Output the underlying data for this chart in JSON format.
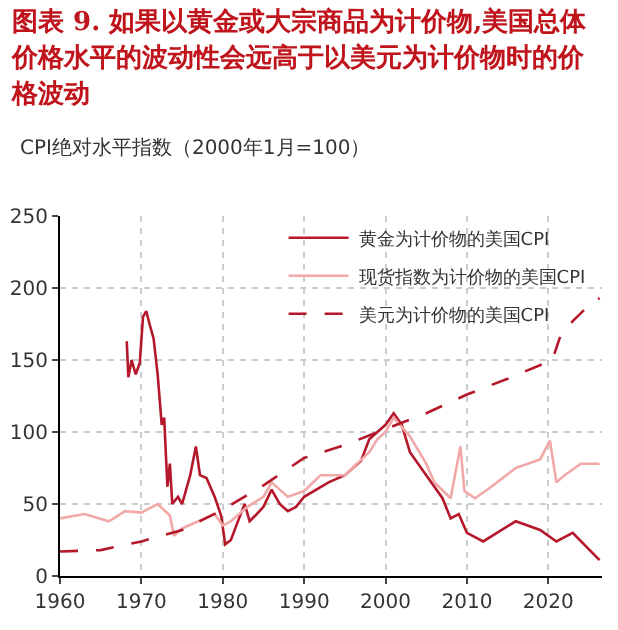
{
  "chart_data": {
    "type": "line",
    "title": "图表 9.   如果以黄金或大宗商品为计价物,美国总体价格水平的波动性会远高于以美元为计价物时的价格波动",
    "ylabel": "CPI绝对水平指数（2000年1月=100）",
    "xlim": [
      1960,
      2026.6
    ],
    "xticks": [
      1960,
      1970,
      1980,
      1990,
      2000,
      2010,
      2020
    ],
    "ylim": [
      0,
      250
    ],
    "yticks": [
      0,
      50,
      100,
      150,
      200,
      250
    ],
    "grid": true,
    "legend": "top right",
    "series": [
      {
        "name": "黄金为计价物的美国CPI",
        "color": "#b5172b",
        "line_style": "solid",
        "x": [
          1968.2,
          1968.4,
          1968.8,
          1969.3,
          1969.8,
          1970.2,
          1970.6,
          1971,
          1971.5,
          1972,
          1972.5,
          1972.8,
          1973.2,
          1973.5,
          1973.8,
          1974.5,
          1975,
          1976,
          1976.7,
          1977.2,
          1978,
          1979,
          1979.8,
          1980.3,
          1981,
          1982,
          1982.7,
          1983.3,
          1984,
          1985,
          1986,
          1987,
          1988,
          1989,
          1990,
          1993,
          1995,
          1997,
          1998,
          1999,
          2000,
          2001,
          2002,
          2003,
          2005,
          2007,
          2008,
          2009,
          2010,
          2012,
          2016,
          2019,
          2021,
          2023,
          2026.3
        ],
        "values": [
          163,
          138,
          150,
          140,
          148,
          180,
          184,
          175,
          165,
          140,
          105,
          110,
          62,
          78,
          50,
          55,
          50,
          70,
          90,
          70,
          68,
          55,
          42,
          22,
          25,
          40,
          50,
          38,
          42,
          48,
          60,
          50,
          45,
          48,
          55,
          65,
          70,
          80,
          95,
          100,
          105,
          113,
          105,
          86,
          70,
          54,
          40,
          43,
          30,
          24,
          38,
          32,
          24,
          30,
          11
        ]
      },
      {
        "name": "现货指数为计价物的美国CPI",
        "color": "#f0a8a8",
        "line_style": "solid",
        "x": [
          1960,
          1963,
          1966,
          1968,
          1970,
          1972,
          1973.5,
          1974,
          1975,
          1977,
          1979,
          1980,
          1981,
          1983,
          1985,
          1986,
          1987,
          1988,
          1990,
          1992,
          1995,
          1998,
          1999,
          2000,
          2001,
          2003,
          2005,
          2006,
          2008,
          2009.2,
          2009.7,
          2011,
          2013,
          2016,
          2019,
          2020.2,
          2021,
          2022,
          2024,
          2026.3
        ],
        "values": [
          40,
          43,
          38,
          45,
          44,
          50,
          42,
          28,
          33,
          38,
          43,
          35,
          38,
          48,
          55,
          65,
          60,
          55,
          59,
          70,
          70,
          86,
          95,
          100,
          110,
          97,
          78,
          65,
          54,
          90,
          59,
          54,
          62,
          75,
          81,
          94,
          65,
          70,
          78,
          78
        ]
      },
      {
        "name": "美元为计价物的美国CPI",
        "color": "#b5172b",
        "line_style": "dashed",
        "x": [
          1960,
          1965,
          1970,
          1975,
          1980,
          1985,
          1990,
          1995,
          2000,
          2005,
          2010,
          2015,
          2020.5,
          2021.5,
          2023,
          2025,
          2026.3
        ],
        "values": [
          17,
          18,
          24,
          32,
          46,
          63,
          82,
          91,
          102,
          113,
          126,
          137,
          150,
          167,
          177,
          188,
          193
        ]
      }
    ]
  }
}
